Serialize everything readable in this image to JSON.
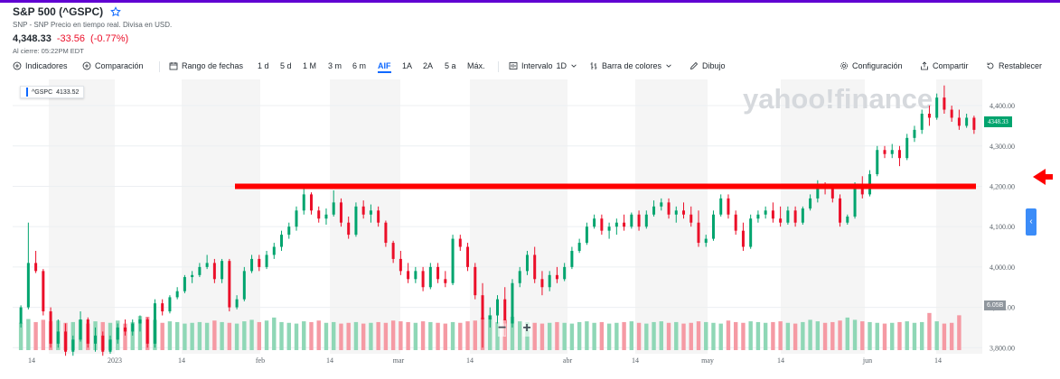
{
  "header": {
    "title": "S&P 500 (^GSPC)",
    "subtitle": "SNP - SNP Precio en tiempo real. Divisa en USD.",
    "price": "4,348.33",
    "change": "-33.56",
    "change_pct": "(-0.77%)",
    "close_time": "Al cierre: 05:22PM EDT"
  },
  "toolbar": {
    "indicators": "Indicadores",
    "comparison": "Comparación",
    "date_range": "Rango de fechas",
    "ranges": [
      "1 d",
      "5 d",
      "1 M",
      "3 m",
      "6 m",
      "AIF",
      "1A",
      "2A",
      "5 a",
      "Máx."
    ],
    "active_range": "AIF",
    "interval_label": "Intervalo",
    "interval_value": "1D",
    "bars_label": "Barra de colores",
    "draw": "Dibujo",
    "settings": "Configuración",
    "share": "Compartir",
    "reset": "Restablecer"
  },
  "chart_data": {
    "type": "candlestick",
    "watermark": "yahoo!finance",
    "legend_symbol": "^GSPC",
    "legend_value": "4133.52",
    "current_price_label": "4348.33",
    "volume_label": "6.05B",
    "y_ticks": [
      "4,400.00",
      "4,300.00",
      "4,200.00",
      "4,100.00",
      "4,000.00",
      "3,900.00",
      "3,800.00"
    ],
    "ylim": [
      3785,
      4465
    ],
    "x_ticks": [
      "14",
      "2023",
      "14",
      "feb",
      "14",
      "mar",
      "14",
      "abr",
      "14",
      "may",
      "14",
      "jun",
      "14"
    ],
    "horizontal_line": 4200,
    "zoom_minus": "−",
    "zoom_plus": "+",
    "colors": {
      "up": "#00a46e",
      "down": "#eb0f29",
      "line": "#ff0000"
    },
    "ohlc": [
      [
        3860,
        3905,
        3850,
        3900
      ],
      [
        3900,
        4110,
        3895,
        4010
      ],
      [
        4010,
        4040,
        3985,
        3990
      ],
      [
        3990,
        3995,
        3880,
        3890
      ],
      [
        3890,
        3900,
        3800,
        3810
      ],
      [
        3810,
        3870,
        3800,
        3840
      ],
      [
        3840,
        3860,
        3780,
        3790
      ],
      [
        3790,
        3830,
        3780,
        3820
      ],
      [
        3820,
        3890,
        3815,
        3870
      ],
      [
        3870,
        3875,
        3800,
        3810
      ],
      [
        3810,
        3850,
        3790,
        3830
      ],
      [
        3830,
        3840,
        3780,
        3790
      ],
      [
        3790,
        3830,
        3785,
        3820
      ],
      [
        3820,
        3860,
        3810,
        3850
      ],
      [
        3850,
        3870,
        3830,
        3840
      ],
      [
        3840,
        3870,
        3830,
        3860
      ],
      [
        3860,
        3880,
        3840,
        3870
      ],
      [
        3870,
        3875,
        3800,
        3810
      ],
      [
        3810,
        3920,
        3800,
        3910
      ],
      [
        3910,
        3920,
        3880,
        3890
      ],
      [
        3890,
        3930,
        3885,
        3925
      ],
      [
        3925,
        3950,
        3920,
        3940
      ],
      [
        3940,
        3980,
        3935,
        3975
      ],
      [
        3975,
        3990,
        3960,
        3980
      ],
      [
        3980,
        4010,
        3975,
        4000
      ],
      [
        4000,
        4030,
        3995,
        4010
      ],
      [
        4010,
        4020,
        3960,
        3970
      ],
      [
        3970,
        4020,
        3960,
        4015
      ],
      [
        4015,
        4020,
        3890,
        3900
      ],
      [
        3900,
        3930,
        3895,
        3920
      ],
      [
        3920,
        4000,
        3915,
        3990
      ],
      [
        3990,
        4030,
        3985,
        4020
      ],
      [
        4020,
        4030,
        3990,
        4000
      ],
      [
        4000,
        4040,
        3995,
        4030
      ],
      [
        4030,
        4060,
        4020,
        4050
      ],
      [
        4050,
        4090,
        4040,
        4080
      ],
      [
        4080,
        4110,
        4070,
        4100
      ],
      [
        4100,
        4150,
        4090,
        4140
      ],
      [
        4140,
        4195,
        4130,
        4180
      ],
      [
        4180,
        4185,
        4130,
        4140
      ],
      [
        4140,
        4150,
        4110,
        4120
      ],
      [
        4120,
        4145,
        4105,
        4130
      ],
      [
        4130,
        4190,
        4125,
        4160
      ],
      [
        4160,
        4170,
        4100,
        4110
      ],
      [
        4110,
        4125,
        4070,
        4080
      ],
      [
        4080,
        4160,
        4075,
        4150
      ],
      [
        4150,
        4165,
        4120,
        4130
      ],
      [
        4130,
        4155,
        4110,
        4140
      ],
      [
        4140,
        4150,
        4100,
        4110
      ],
      [
        4110,
        4115,
        4050,
        4060
      ],
      [
        4060,
        4065,
        4010,
        4020
      ],
      [
        4020,
        4040,
        3980,
        3990
      ],
      [
        3990,
        4010,
        3960,
        3970
      ],
      [
        3970,
        4000,
        3960,
        3990
      ],
      [
        3990,
        4000,
        3940,
        3950
      ],
      [
        3950,
        4010,
        3945,
        4000
      ],
      [
        4000,
        4010,
        3960,
        3970
      ],
      [
        3970,
        3990,
        3950,
        3960
      ],
      [
        3960,
        4080,
        3955,
        4070
      ],
      [
        4070,
        4080,
        4040,
        4050
      ],
      [
        4050,
        4060,
        3990,
        4000
      ],
      [
        4000,
        4010,
        3920,
        3930
      ],
      [
        3930,
        3960,
        3800,
        3870
      ],
      [
        3870,
        3900,
        3850,
        3880
      ],
      [
        3880,
        3930,
        3860,
        3920
      ],
      [
        3920,
        3950,
        3830,
        3860
      ],
      [
        3860,
        3970,
        3850,
        3960
      ],
      [
        3960,
        4000,
        3950,
        3990
      ],
      [
        3990,
        4040,
        3980,
        4030
      ],
      [
        4030,
        4050,
        3960,
        3970
      ],
      [
        3970,
        3990,
        3930,
        3950
      ],
      [
        3950,
        3990,
        3940,
        3980
      ],
      [
        3980,
        4000,
        3960,
        3970
      ],
      [
        3970,
        4010,
        3965,
        4000
      ],
      [
        4000,
        4050,
        3995,
        4040
      ],
      [
        4040,
        4070,
        4035,
        4060
      ],
      [
        4060,
        4110,
        4055,
        4100
      ],
      [
        4100,
        4130,
        4095,
        4120
      ],
      [
        4120,
        4130,
        4080,
        4090
      ],
      [
        4090,
        4110,
        4070,
        4100
      ],
      [
        4100,
        4120,
        4080,
        4110
      ],
      [
        4110,
        4130,
        4090,
        4100
      ],
      [
        4100,
        4135,
        4095,
        4130
      ],
      [
        4130,
        4140,
        4090,
        4100
      ],
      [
        4100,
        4140,
        4095,
        4130
      ],
      [
        4130,
        4165,
        4125,
        4150
      ],
      [
        4150,
        4170,
        4140,
        4160
      ],
      [
        4160,
        4170,
        4120,
        4130
      ],
      [
        4130,
        4150,
        4110,
        4140
      ],
      [
        4140,
        4160,
        4120,
        4130
      ],
      [
        4130,
        4150,
        4100,
        4110
      ],
      [
        4110,
        4140,
        4050,
        4060
      ],
      [
        4060,
        4080,
        4050,
        4070
      ],
      [
        4070,
        4140,
        4065,
        4130
      ],
      [
        4130,
        4180,
        4125,
        4170
      ],
      [
        4170,
        4180,
        4120,
        4130
      ],
      [
        4130,
        4140,
        4080,
        4090
      ],
      [
        4090,
        4110,
        4040,
        4050
      ],
      [
        4050,
        4130,
        4045,
        4120
      ],
      [
        4120,
        4140,
        4110,
        4130
      ],
      [
        4130,
        4150,
        4120,
        4140
      ],
      [
        4140,
        4160,
        4110,
        4120
      ],
      [
        4120,
        4150,
        4100,
        4110
      ],
      [
        4110,
        4150,
        4105,
        4140
      ],
      [
        4140,
        4150,
        4100,
        4110
      ],
      [
        4110,
        4150,
        4105,
        4145
      ],
      [
        4145,
        4180,
        4140,
        4170
      ],
      [
        4170,
        4215,
        4160,
        4205
      ],
      [
        4205,
        4210,
        4180,
        4195
      ],
      [
        4195,
        4200,
        4160,
        4170
      ],
      [
        4170,
        4180,
        4100,
        4110
      ],
      [
        4110,
        4130,
        4105,
        4125
      ],
      [
        4125,
        4210,
        4120,
        4205
      ],
      [
        4205,
        4225,
        4170,
        4180
      ],
      [
        4180,
        4240,
        4175,
        4230
      ],
      [
        4230,
        4300,
        4225,
        4290
      ],
      [
        4290,
        4300,
        4270,
        4280
      ],
      [
        4280,
        4305,
        4270,
        4290
      ],
      [
        4290,
        4300,
        4250,
        4270
      ],
      [
        4270,
        4330,
        4265,
        4320
      ],
      [
        4320,
        4350,
        4310,
        4340
      ],
      [
        4340,
        4390,
        4330,
        4380
      ],
      [
        4380,
        4400,
        4350,
        4370
      ],
      [
        4370,
        4430,
        4365,
        4420
      ],
      [
        4420,
        4450,
        4380,
        4390
      ],
      [
        4390,
        4400,
        4360,
        4370
      ],
      [
        4370,
        4390,
        4340,
        4350
      ],
      [
        4350,
        4380,
        4345,
        4370
      ],
      [
        4370,
        4375,
        4330,
        4340
      ]
    ],
    "volume": [
      0.72,
      0.82,
      0.74,
      0.8,
      0.76,
      0.78,
      0.72,
      0.74,
      0.8,
      0.7,
      0.76,
      0.74,
      0.72,
      0.78,
      0.7,
      0.74,
      0.9,
      0.88,
      0.8,
      0.72,
      0.76,
      0.74,
      0.7,
      0.72,
      0.74,
      0.72,
      0.78,
      0.74,
      0.72,
      0.7,
      0.76,
      0.8,
      0.74,
      0.78,
      0.86,
      0.74,
      0.72,
      0.7,
      0.76,
      0.74,
      0.78,
      0.72,
      0.74,
      0.7,
      0.72,
      0.74,
      0.7,
      0.72,
      0.74,
      0.72,
      0.78,
      0.76,
      0.74,
      0.72,
      0.76,
      0.74,
      0.72,
      0.7,
      0.74,
      0.72,
      0.76,
      0.78,
      0.86,
      0.92,
      0.74,
      0.8,
      0.88,
      0.76,
      0.74,
      0.72,
      0.7,
      0.72,
      0.74,
      0.72,
      0.7,
      0.74,
      0.76,
      0.72,
      0.74,
      0.7,
      0.72,
      0.74,
      0.76,
      0.72,
      0.7,
      0.74,
      0.76,
      0.72,
      0.74,
      0.7,
      0.72,
      0.76,
      0.74,
      0.72,
      0.7,
      0.78,
      0.74,
      0.72,
      0.76,
      0.74,
      0.72,
      0.74,
      0.76,
      0.72,
      0.7,
      0.74,
      0.8,
      0.76,
      0.72,
      0.74,
      0.78,
      0.86,
      0.8,
      0.76,
      0.74,
      0.72,
      0.7,
      0.72,
      0.74,
      0.76,
      0.72,
      0.74,
      0.98,
      0.76,
      0.7,
      0.72,
      0.92
    ]
  }
}
